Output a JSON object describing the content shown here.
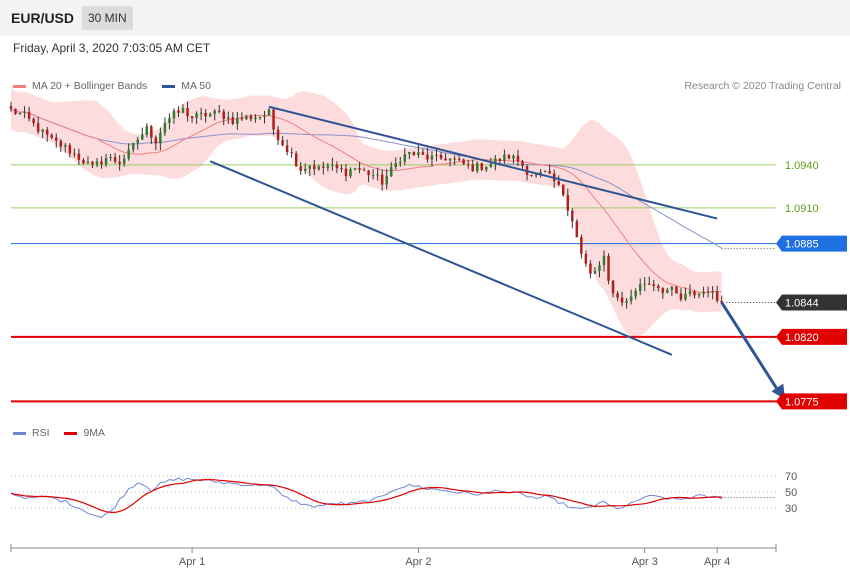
{
  "header": {
    "symbol": "EUR/USD",
    "interval": "30 MIN",
    "timestamp": "Friday, April 3, 2020 7:03:05 AM CET"
  },
  "price_legend": [
    {
      "label": "MA 20 + Bollinger Bands",
      "color": "#f08080"
    },
    {
      "label": "MA 50",
      "color": "#2f5597"
    }
  ],
  "rsi_legend": [
    {
      "label": "RSI",
      "color": "#6f86d6"
    },
    {
      "label": "9MA",
      "color": "#e00000"
    }
  ],
  "copyright": "Research © 2020 Trading Central",
  "colors": {
    "up": "#2e7d32",
    "down": "#b71c1c",
    "band": "#fbd0d0",
    "ma20": "#f08080",
    "ma50": "#8a93c8",
    "channel": "#2f5597",
    "res_line": "#9ccc65",
    "pivot": "#1e6fe0",
    "support": "#e00000",
    "last": "#333333",
    "rsi": "#6f86d6",
    "rsi_ma": "#e00000"
  },
  "chart_data": {
    "type": "candlestick",
    "y_range": [
      1.0762,
      1.0988
    ],
    "x_range": [
      0,
      169
    ],
    "x_ticks": [
      {
        "x": 40,
        "label": "Apr 1"
      },
      {
        "x": 90,
        "label": "Apr 2"
      },
      {
        "x": 140,
        "label": "Apr 3"
      },
      {
        "x": 156,
        "label": "Apr 4"
      }
    ],
    "levels": [
      {
        "value": 1.094,
        "label": "1.0940",
        "kind": "resistance"
      },
      {
        "value": 1.091,
        "label": "1.0910",
        "kind": "resistance"
      },
      {
        "value": 1.0885,
        "label": "1.0885",
        "kind": "pivot"
      },
      {
        "value": 1.0844,
        "label": "1.0844",
        "kind": "last"
      },
      {
        "value": 1.082,
        "label": "1.0820",
        "kind": "support"
      },
      {
        "value": 1.0775,
        "label": "1.0775",
        "kind": "support"
      }
    ],
    "channel": [
      {
        "x1": 57,
        "y1": 1.09805,
        "x2": 156,
        "y2": 1.09025
      },
      {
        "x1": 44,
        "y1": 1.09425,
        "x2": 146,
        "y2": 1.08075
      }
    ],
    "projection": {
      "x1": 157,
      "y1": 1.0844,
      "x2": 171,
      "y2": 1.07765
    },
    "key_points": [
      [
        0,
        1.0978
      ],
      [
        3,
        1.0974
      ],
      [
        6,
        1.0965
      ],
      [
        9,
        1.0957
      ],
      [
        12,
        1.0952
      ],
      [
        15,
        1.0945
      ],
      [
        18,
        1.0938
      ],
      [
        21,
        1.0945
      ],
      [
        24,
        1.0942
      ],
      [
        26,
        1.0948
      ],
      [
        28,
        1.0958
      ],
      [
        30,
        1.0965
      ],
      [
        32,
        1.0957
      ],
      [
        34,
        1.097
      ],
      [
        36,
        1.0975
      ],
      [
        38,
        1.0978
      ],
      [
        40,
        1.0973
      ],
      [
        43,
        1.0975
      ],
      [
        46,
        1.0976
      ],
      [
        49,
        1.0971
      ],
      [
        52,
        1.0973
      ],
      [
        55,
        1.0974
      ],
      [
        57,
        1.0976
      ],
      [
        58,
        1.0965
      ],
      [
        60,
        1.0955
      ],
      [
        62,
        1.0947
      ],
      [
        64,
        1.0937
      ],
      [
        66,
        1.094
      ],
      [
        68,
        1.0937
      ],
      [
        70,
        1.0939
      ],
      [
        72,
        1.0937
      ],
      [
        74,
        1.0935
      ],
      [
        76,
        1.0938
      ],
      [
        78,
        1.0935
      ],
      [
        80,
        1.0933
      ],
      [
        82,
        1.0928
      ],
      [
        84,
        1.0936
      ],
      [
        86,
        1.0945
      ],
      [
        88,
        1.0948
      ],
      [
        90,
        1.0947
      ],
      [
        92,
        1.0945
      ],
      [
        94,
        1.0944
      ],
      [
        96,
        1.0945
      ],
      [
        98,
        1.0943
      ],
      [
        100,
        1.094
      ],
      [
        102,
        1.0938
      ],
      [
        104,
        1.0939
      ],
      [
        106,
        1.0941
      ],
      [
        108,
        1.0944
      ],
      [
        110,
        1.0946
      ],
      [
        112,
        1.0943
      ],
      [
        114,
        1.0936
      ],
      [
        116,
        1.0932
      ],
      [
        118,
        1.0934
      ],
      [
        120,
        1.0928
      ],
      [
        122,
        1.092
      ],
      [
        124,
        1.0902
      ],
      [
        126,
        1.0877
      ],
      [
        128,
        1.0863
      ],
      [
        130,
        1.0869
      ],
      [
        131,
        1.0874
      ],
      [
        132,
        1.0858
      ],
      [
        134,
        1.0847
      ],
      [
        136,
        1.0844
      ],
      [
        138,
        1.0853
      ],
      [
        140,
        1.0858
      ],
      [
        142,
        1.0857
      ],
      [
        144,
        1.0853
      ],
      [
        146,
        1.0852
      ],
      [
        148,
        1.0846
      ],
      [
        150,
        1.085
      ],
      [
        152,
        1.085
      ],
      [
        154,
        1.0853
      ],
      [
        156,
        1.0846
      ],
      [
        157,
        1.0844
      ]
    ],
    "rsi": {
      "y_range": [
        0,
        100
      ],
      "levels": [
        {
          "value": 70,
          "label": "70"
        },
        {
          "value": 50,
          "label": "50"
        },
        {
          "value": 30,
          "label": "30"
        }
      ],
      "key_points": [
        [
          0,
          48
        ],
        [
          4,
          42
        ],
        [
          8,
          44
        ],
        [
          12,
          38
        ],
        [
          14,
          33
        ],
        [
          18,
          22
        ],
        [
          20,
          18
        ],
        [
          22,
          26
        ],
        [
          24,
          40
        ],
        [
          26,
          54
        ],
        [
          28,
          62
        ],
        [
          30,
          58
        ],
        [
          31,
          52
        ],
        [
          33,
          60
        ],
        [
          35,
          64
        ],
        [
          37,
          66
        ],
        [
          40,
          66
        ],
        [
          45,
          63
        ],
        [
          50,
          60
        ],
        [
          54,
          58
        ],
        [
          56,
          60
        ],
        [
          58,
          55
        ],
        [
          60,
          45
        ],
        [
          62,
          40
        ],
        [
          64,
          36
        ],
        [
          66,
          32
        ],
        [
          68,
          33
        ],
        [
          70,
          34
        ],
        [
          72,
          36
        ],
        [
          74,
          35
        ],
        [
          76,
          36
        ],
        [
          78,
          38
        ],
        [
          80,
          40
        ],
        [
          82,
          44
        ],
        [
          84,
          52
        ],
        [
          86,
          56
        ],
        [
          88,
          58
        ],
        [
          90,
          57
        ],
        [
          92,
          54
        ],
        [
          94,
          53
        ],
        [
          96,
          52
        ],
        [
          98,
          50
        ],
        [
          100,
          49
        ],
        [
          102,
          48
        ],
        [
          104,
          47
        ],
        [
          106,
          50
        ],
        [
          108,
          53
        ],
        [
          110,
          49
        ],
        [
          112,
          48
        ],
        [
          114,
          45
        ],
        [
          116,
          42
        ],
        [
          118,
          44
        ],
        [
          120,
          40
        ],
        [
          122,
          35
        ],
        [
          124,
          30
        ],
        [
          126,
          28
        ],
        [
          128,
          32
        ],
        [
          130,
          35
        ],
        [
          131,
          38
        ],
        [
          132,
          33
        ],
        [
          134,
          30
        ],
        [
          136,
          32
        ],
        [
          138,
          38
        ],
        [
          140,
          44
        ],
        [
          142,
          44
        ],
        [
          144,
          43
        ],
        [
          146,
          41
        ],
        [
          148,
          41
        ],
        [
          150,
          43
        ],
        [
          152,
          45
        ],
        [
          154,
          44
        ],
        [
          156,
          43
        ],
        [
          157,
          43
        ]
      ]
    }
  }
}
